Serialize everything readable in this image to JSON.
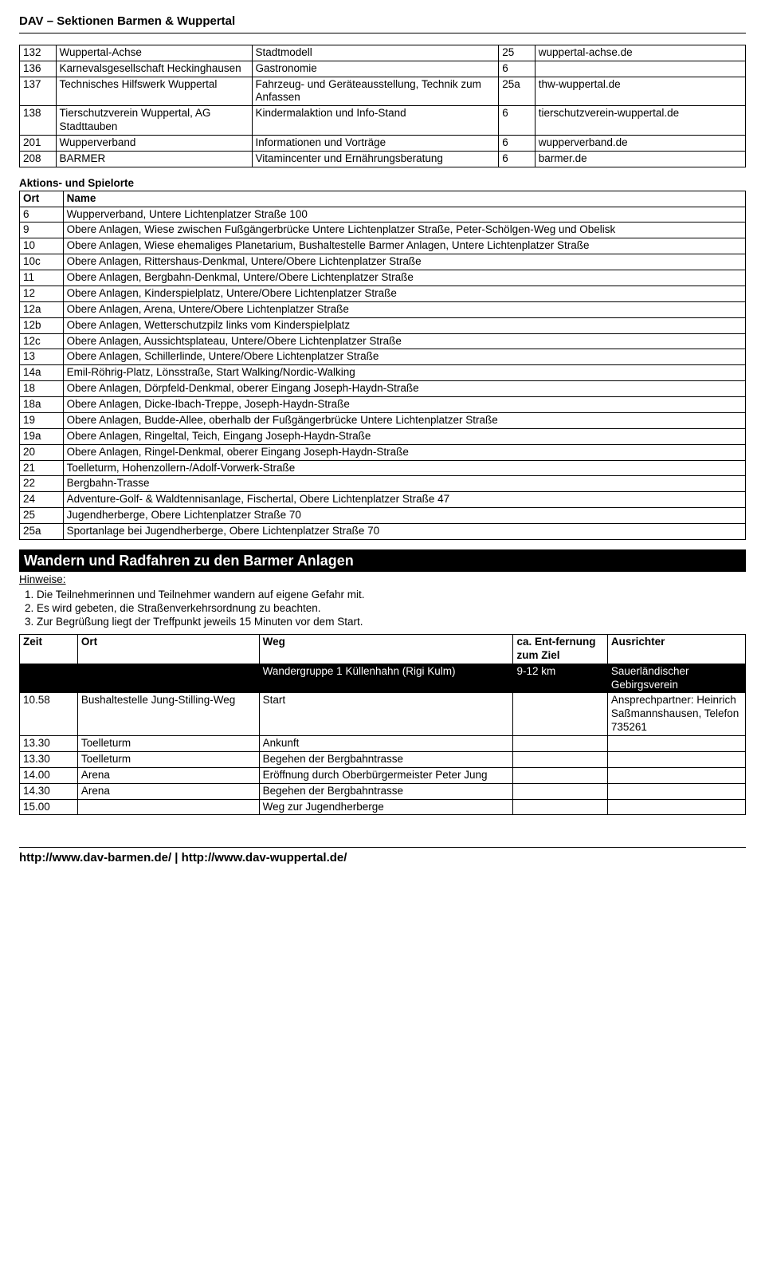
{
  "header": "DAV – Sektionen Barmen & Wuppertal",
  "table1": {
    "rows": [
      [
        "132",
        "Wuppertal-Achse",
        "Stadtmodell",
        "25",
        "wuppertal-achse.de"
      ],
      [
        "136",
        "Karnevalsgesellschaft Heckinghausen",
        "Gastronomie",
        "6",
        ""
      ],
      [
        "137",
        "Technisches Hilfswerk Wuppertal",
        "Fahrzeug- und Geräteausstellung, Technik zum Anfassen",
        "25a",
        "thw-wuppertal.de"
      ],
      [
        "138",
        "Tierschutzverein Wuppertal, AG Stadttauben",
        "Kindermalaktion und Info-Stand",
        "6",
        "tierschutzverein-wuppertal.de"
      ],
      [
        "201",
        "Wupperverband",
        "Informationen und Vorträge",
        "6",
        "wupperverband.de"
      ],
      [
        "208",
        "BARMER",
        "Vitamincenter und Ernährungsberatung",
        "6",
        "barmer.de"
      ]
    ]
  },
  "section2_title": "Aktions- und Spielorte",
  "table2": {
    "head": [
      "Ort",
      "Name"
    ],
    "rows": [
      [
        "6",
        "Wupperverband, Untere Lichtenplatzer Straße 100"
      ],
      [
        "9",
        "Obere Anlagen, Wiese zwischen Fußgängerbrücke Untere Lichtenplatzer Straße, Peter-Schölgen-Weg und Obelisk"
      ],
      [
        "10",
        "Obere Anlagen, Wiese ehemaliges Planetarium, Bushaltestelle Barmer Anlagen, Untere Lichtenplatzer Straße"
      ],
      [
        "10c",
        "Obere Anlagen, Rittershaus-Denkmal, Untere/Obere Lichtenplatzer Straße"
      ],
      [
        "11",
        "Obere Anlagen, Bergbahn-Denkmal, Untere/Obere Lichtenplatzer Straße"
      ],
      [
        "12",
        "Obere Anlagen, Kinderspielplatz, Untere/Obere Lichtenplatzer Straße"
      ],
      [
        "12a",
        "Obere Anlagen, Arena, Untere/Obere Lichtenplatzer Straße"
      ],
      [
        "12b",
        "Obere Anlagen, Wetterschutzpilz links vom Kinderspielplatz"
      ],
      [
        "12c",
        "Obere Anlagen, Aussichtsplateau, Untere/Obere Lichtenplatzer Straße"
      ],
      [
        "13",
        "Obere Anlagen, Schillerlinde, Untere/Obere Lichtenplatzer Straße"
      ],
      [
        "14a",
        "Emil-Röhrig-Platz, Lönsstraße, Start Walking/Nordic-Walking"
      ],
      [
        "18",
        "Obere Anlagen, Dörpfeld-Denkmal, oberer Eingang Joseph-Haydn-Straße"
      ],
      [
        "18a",
        "Obere Anlagen, Dicke-Ibach-Treppe, Joseph-Haydn-Straße"
      ],
      [
        "19",
        "Obere Anlagen, Budde-Allee, oberhalb der Fußgängerbrücke Untere Lichtenplatzer Straße"
      ],
      [
        "19a",
        "Obere Anlagen, Ringeltal, Teich, Eingang Joseph-Haydn-Straße"
      ],
      [
        "20",
        "Obere Anlagen, Ringel-Denkmal, oberer Eingang Joseph-Haydn-Straße"
      ],
      [
        "21",
        "Toelleturm, Hohenzollern-/Adolf-Vorwerk-Straße"
      ],
      [
        "22",
        "Bergbahn-Trasse"
      ],
      [
        "24",
        "Adventure-Golf- & Waldtennisanlage, Fischertal, Obere Lichtenplatzer Straße 47"
      ],
      [
        "25",
        "Jugendherberge, Obere Lichtenplatzer Straße 70"
      ],
      [
        "25a",
        "Sportanlage bei Jugendherberge, Obere Lichtenplatzer Straße 70"
      ]
    ]
  },
  "blackbar": "Wandern und Radfahren zu den Barmer Anlagen",
  "hints_label": "Hinweise:",
  "hints": [
    "Die Teilnehmerinnen und Teilnehmer wandern auf eigene Gefahr mit.",
    "Es wird gebeten, die Straßenverkehrsordnung zu beachten.",
    "Zur Begrüßung liegt der Treffpunkt jeweils 15 Minuten vor dem Start."
  ],
  "table3": {
    "head": [
      "Zeit",
      "Ort",
      "Weg",
      "ca. Ent-fernung zum Ziel",
      "Ausrichter"
    ],
    "black": [
      "",
      "",
      "Wandergruppe 1 Küllenhahn (Rigi Kulm)",
      "9-12 km",
      "Sauerländischer Gebirgsverein"
    ],
    "rows": [
      [
        "10.58",
        "Bushaltestelle Jung-Stilling-Weg",
        "Start",
        "",
        "Ansprechpartner: Heinrich Saßmannshausen, Telefon 735261"
      ],
      [
        "13.30",
        "Toelleturm",
        "Ankunft",
        "",
        ""
      ],
      [
        "13.30",
        "Toelleturm",
        "Begehen der Bergbahntrasse",
        "",
        ""
      ],
      [
        "14.00",
        "Arena",
        "Eröffnung durch Oberbürgermeister Peter Jung",
        "",
        ""
      ],
      [
        "14.30",
        "Arena",
        "Begehen der Bergbahntrasse",
        "",
        ""
      ],
      [
        "15.00",
        "",
        "Weg zur Jugendherberge",
        "",
        ""
      ]
    ]
  },
  "footer": "http://www.dav-barmen.de/ | http://www.dav-wuppertal.de/"
}
